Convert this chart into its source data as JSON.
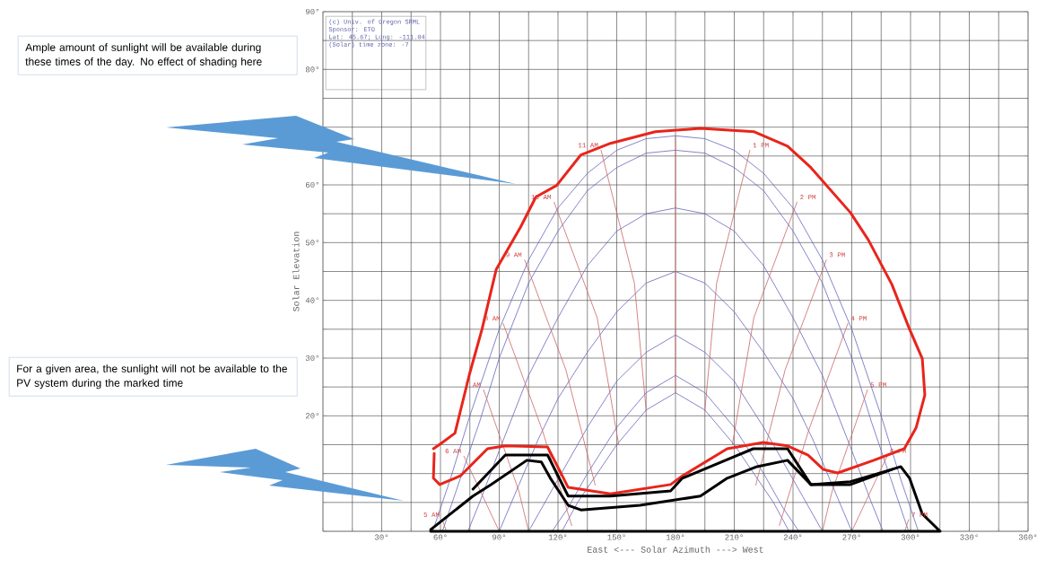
{
  "chart_data": {
    "type": "line",
    "xlabel": "East <--- Solar Azimuth ---> West",
    "ylabel": "Solar Elevation",
    "xlim": [
      0,
      360
    ],
    "ylim": [
      0,
      90
    ],
    "xticks": [
      {
        "value": 0,
        "label": null
      },
      {
        "value": 15,
        "label": null
      },
      {
        "value": 30,
        "label": "30°"
      },
      {
        "value": 45,
        "label": null
      },
      {
        "value": 60,
        "label": "60°"
      },
      {
        "value": 75,
        "label": null
      },
      {
        "value": 90,
        "label": "90°"
      },
      {
        "value": 105,
        "label": null
      },
      {
        "value": 120,
        "label": "120°"
      },
      {
        "value": 135,
        "label": null
      },
      {
        "value": 150,
        "label": "150°"
      },
      {
        "value": 165,
        "label": null
      },
      {
        "value": 180,
        "label": "180°"
      },
      {
        "value": 195,
        "label": null
      },
      {
        "value": 210,
        "label": "210°"
      },
      {
        "value": 225,
        "label": null
      },
      {
        "value": 240,
        "label": "240°"
      },
      {
        "value": 255,
        "label": null
      },
      {
        "value": 270,
        "label": "270°"
      },
      {
        "value": 285,
        "label": null
      },
      {
        "value": 300,
        "label": "300°"
      },
      {
        "value": 315,
        "label": null
      },
      {
        "value": 330,
        "label": "330°"
      },
      {
        "value": 345,
        "label": null
      },
      {
        "value": 360,
        "label": "360°"
      }
    ],
    "yticks": [
      {
        "value": 0,
        "label": null
      },
      {
        "value": 5,
        "label": null
      },
      {
        "value": 10,
        "label": null
      },
      {
        "value": 15,
        "label": null
      },
      {
        "value": 20,
        "label": "20°"
      },
      {
        "value": 25,
        "label": null
      },
      {
        "value": 30,
        "label": "30°"
      },
      {
        "value": 35,
        "label": null
      },
      {
        "value": 40,
        "label": "40°"
      },
      {
        "value": 45,
        "label": null
      },
      {
        "value": 50,
        "label": "50°"
      },
      {
        "value": 55,
        "label": null
      },
      {
        "value": 60,
        "label": "60°"
      },
      {
        "value": 65,
        "label": null
      },
      {
        "value": 70,
        "label": null
      },
      {
        "value": 75,
        "label": null
      },
      {
        "value": 80,
        "label": "80°"
      },
      {
        "value": 85,
        "label": null
      },
      {
        "value": 90,
        "label": "90°"
      }
    ],
    "grid": true,
    "series": [
      {
        "color": "#6666bb",
        "x": [
          56,
          65,
          75,
          90,
          105,
          120,
          135,
          150,
          165,
          180,
          195,
          210,
          225,
          240,
          255,
          270,
          285,
          295,
          304
        ],
        "values": [
          0,
          9,
          20,
          35,
          47,
          56,
          62,
          66,
          68,
          68.5,
          68,
          66,
          62,
          56,
          47,
          35,
          20,
          9,
          0
        ]
      },
      {
        "color": "#6666bb",
        "x": [
          61,
          70,
          80,
          90,
          105,
          120,
          135,
          150,
          165,
          180,
          195,
          210,
          225,
          240,
          255,
          270,
          280,
          290,
          299
        ],
        "values": [
          0,
          9,
          19,
          30,
          43,
          52,
          59,
          63,
          65.5,
          66,
          65.5,
          63,
          59,
          52,
          43,
          30,
          19,
          9,
          0
        ]
      },
      {
        "color": "#6666bb",
        "x": [
          74,
          80,
          90,
          105,
          120,
          135,
          150,
          165,
          180,
          195,
          210,
          225,
          240,
          255,
          270,
          280,
          286
        ],
        "values": [
          0,
          5,
          14,
          27,
          37,
          46,
          52,
          55,
          56,
          55,
          52,
          46,
          37,
          27,
          14,
          5,
          0
        ]
      },
      {
        "color": "#6666bb",
        "x": [
          90,
          100,
          110,
          120,
          135,
          150,
          165,
          180,
          195,
          210,
          225,
          240,
          250,
          260,
          270
        ],
        "values": [
          0,
          8,
          16,
          23,
          31,
          38,
          43,
          45,
          43,
          38,
          31,
          23,
          16,
          8,
          0
        ]
      },
      {
        "color": "#6666bb",
        "x": [
          105,
          115,
          125,
          135,
          150,
          165,
          180,
          195,
          210,
          225,
          235,
          245,
          255
        ],
        "values": [
          0,
          6,
          12,
          18,
          26,
          31,
          34,
          31,
          26,
          18,
          12,
          6,
          0
        ]
      },
      {
        "color": "#6666bb",
        "x": [
          117,
          125,
          135,
          150,
          165,
          180,
          195,
          210,
          225,
          235,
          243
        ],
        "values": [
          0,
          4,
          10,
          18,
          24,
          27,
          24,
          18,
          10,
          4,
          0
        ]
      },
      {
        "color": "#6666bb",
        "x": [
          122,
          130,
          140,
          150,
          165,
          180,
          195,
          210,
          220,
          230,
          238
        ],
        "values": [
          0,
          5,
          10,
          15,
          21,
          24,
          21,
          15,
          10,
          5,
          0
        ]
      },
      {
        "color": "#cc6666",
        "x": [
          180,
          180
        ],
        "values": [
          68.5,
          24
        ]
      },
      {
        "color": "#cc6666",
        "x": [
          142,
          159,
          165
        ],
        "values": [
          66,
          43,
          21
        ]
      },
      {
        "color": "#cc6666",
        "x": [
          218,
          201,
          195
        ],
        "values": [
          66,
          43,
          21
        ]
      },
      {
        "color": "#cc6666",
        "x": [
          118,
          140,
          151
        ],
        "values": [
          57,
          37,
          15
        ]
      },
      {
        "color": "#cc6666",
        "x": [
          242,
          220,
          209
        ],
        "values": [
          57,
          37,
          15
        ]
      },
      {
        "color": "#cc6666",
        "x": [
          103,
          124,
          139
        ],
        "values": [
          47,
          28,
          8
        ]
      },
      {
        "color": "#cc6666",
        "x": [
          257,
          236,
          221
        ],
        "values": [
          47,
          28,
          8
        ]
      },
      {
        "color": "#cc6666",
        "x": [
          92,
          112,
          127
        ],
        "values": [
          36,
          17.5,
          1
        ]
      },
      {
        "color": "#cc6666",
        "x": [
          268,
          248,
          233
        ],
        "values": [
          36,
          17.5,
          1
        ]
      },
      {
        "color": "#cc6666",
        "x": [
          82,
          100,
          105
        ],
        "values": [
          24.5,
          7,
          0
        ]
      },
      {
        "color": "#cc6666",
        "x": [
          278,
          260,
          255
        ],
        "values": [
          24.5,
          7,
          0
        ]
      },
      {
        "color": "#cc6666",
        "x": [
          72,
          90
        ],
        "values": [
          13,
          0
        ]
      },
      {
        "color": "#cc6666",
        "x": [
          288,
          270
        ],
        "values": [
          13,
          0
        ]
      },
      {
        "color": "#cc6666",
        "x": [
          61,
          63
        ],
        "values": [
          2,
          0
        ]
      },
      {
        "color": "#cc6666",
        "x": [
          299,
          297
        ],
        "values": [
          2,
          0
        ]
      },
      {
        "color": "#e8251b",
        "x": [
          56.4,
          61,
          67.4,
          74.8,
          81.2,
          88.5,
          100.9,
          108.7,
          119.3,
          131.7,
          146.8,
          169.7,
          192.7,
          220.2,
          237.2,
          249.1,
          269.3,
          278.4,
          290.4,
          299.5,
          306,
          307.3,
          302.8,
          296.8,
          281.2,
          262.8,
          255.5,
          247.7,
          237.2,
          224.8,
          206.4,
          183.5,
          177.5,
          146.8,
          125.2,
          114.7,
          93.1,
          84,
          70.2,
          59.6,
          56.4,
          56.8
        ],
        "values": [
          14.3,
          15.4,
          17,
          27.2,
          35,
          45.4,
          52.7,
          57.9,
          59.9,
          65.2,
          67.2,
          69.2,
          69.8,
          69.2,
          66.7,
          63,
          55.2,
          50.5,
          42.8,
          35,
          29.9,
          23.6,
          17.9,
          14.3,
          12.3,
          10.1,
          10.7,
          13.2,
          14.8,
          15.4,
          14.3,
          9.6,
          8.1,
          6.5,
          7.6,
          14.6,
          14.8,
          14.3,
          9.6,
          8.1,
          9.2,
          13.5
        ]
      },
      {
        "color": "#000000",
        "x": [
          55,
          76.6,
          85.8,
          104.1,
          111.5,
          116.1,
          125.2,
          131.7,
          161.9,
          192.7,
          206.4,
          221.6,
          237.2,
          249.1,
          269.3,
          290.4,
          295,
          299.5,
          306,
          315.1,
          55
        ],
        "values": [
          0.3,
          6.1,
          8.1,
          12.3,
          12,
          9.2,
          4.5,
          3.7,
          4.5,
          6.1,
          9.2,
          11.2,
          12.3,
          8.1,
          8.6,
          10.7,
          11.2,
          9.2,
          3,
          0,
          0
        ]
      },
      {
        "color": "#000000",
        "x": [
          76.6,
          93.1,
          114.7,
          125.2,
          146.8,
          177.5,
          183.5,
          219.7,
          237.2,
          249.1,
          269.3,
          290.4
        ],
        "values": [
          7.3,
          13.2,
          13.2,
          6.1,
          6.1,
          7,
          9.2,
          14.3,
          14.3,
          8.1,
          8.1,
          10.7
        ]
      }
    ],
    "annotations": [
      "(c) Univ. of Oregon SRML",
      "Sponsor: ETO",
      "Lat: 45.67; Long: -111.04",
      "(Solar) time zone: -7",
      "Ample amount of sunlight will be available during these times of the day. No effect of shading here",
      "For a given area, the sunlight will not be available to the PV system during the marked time",
      {
        "text": "11 AM",
        "x": 142,
        "y": 66
      },
      {
        "text": "10 AM",
        "x": 118,
        "y": 57
      },
      {
        "text": "9 AM",
        "x": 103,
        "y": 47
      },
      {
        "text": "8 AM",
        "x": 92,
        "y": 36
      },
      {
        "text": "7 AM",
        "x": 82,
        "y": 24.5
      },
      {
        "text": "6 AM",
        "x": 72,
        "y": 13
      },
      {
        "text": "5 AM",
        "x": 61,
        "y": 2
      },
      {
        "text": "1 PM",
        "x": 218,
        "y": 66
      },
      {
        "text": "2 PM",
        "x": 242,
        "y": 57
      },
      {
        "text": "3 PM",
        "x": 257,
        "y": 47
      },
      {
        "text": "4 PM",
        "x": 268,
        "y": 36
      },
      {
        "text": "5 PM",
        "x": 278,
        "y": 24.5
      },
      {
        "text": "6 PM",
        "x": 288,
        "y": 13
      },
      {
        "text": "7 PM",
        "x": 299,
        "y": 2
      }
    ]
  }
}
